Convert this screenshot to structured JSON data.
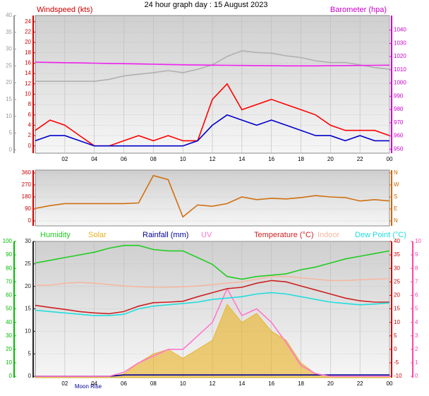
{
  "chart_data": [
    {
      "type": "line",
      "title": "24 hour graph day : 15 August 2023",
      "x": [
        0,
        1,
        2,
        3,
        4,
        5,
        6,
        7,
        8,
        9,
        10,
        11,
        12,
        13,
        14,
        15,
        16,
        17,
        18,
        19,
        20,
        21,
        22,
        23,
        24
      ],
      "xlim": [
        0,
        24
      ],
      "xticks": [
        {
          "value": 2,
          "label": "02"
        },
        {
          "value": 4,
          "label": "04"
        },
        {
          "value": 6,
          "label": "06"
        },
        {
          "value": 8,
          "label": "08"
        },
        10,
        12,
        14,
        16,
        18,
        20,
        22,
        {
          "value": 24,
          "label": "00"
        }
      ],
      "grid": true,
      "axes": [
        {
          "side": "left",
          "label": "Windspeed (kts)",
          "color": "#cc0000",
          "lim": [
            -1.4,
            25.2
          ],
          "ticks": [
            0,
            2,
            4,
            6,
            8,
            10,
            12,
            14,
            16,
            18,
            20,
            22,
            24
          ],
          "grid": true
        },
        {
          "side": "left",
          "color": "#999999",
          "lim": [
            -1,
            40
          ],
          "ticks": [
            0,
            5,
            10,
            15,
            20,
            25,
            30,
            35,
            40
          ]
        },
        {
          "side": "right",
          "label": "Barometer (hpa)",
          "color": "#cc00cc",
          "lim": [
            947,
            1051
          ],
          "ticks": [
            950,
            960,
            970,
            980,
            990,
            1000,
            1010,
            1020,
            1030,
            1040
          ]
        }
      ],
      "series": [
        {
          "axis": 1,
          "color": "#b0b0b0",
          "style": "line",
          "values": [
            20.4,
            20.4,
            20.4,
            20.4,
            20.4,
            21,
            22,
            22.5,
            23,
            23.6,
            23,
            24,
            25.3,
            27.8,
            29.5,
            29,
            28.8,
            28,
            27.5,
            26.5,
            26,
            26,
            25.3,
            24.5,
            24
          ]
        },
        {
          "axis": 2,
          "color": "#ee22ee",
          "style": "line",
          "values": [
            1015.8,
            1015.6,
            1015.4,
            1015.2,
            1015,
            1014.8,
            1014.6,
            1014.4,
            1014.2,
            1014,
            1013.8,
            1013.6,
            1013.5,
            1013.4,
            1013.3,
            1013.2,
            1013.1,
            1013,
            1013,
            1013,
            1013.1,
            1013.2,
            1013.3,
            1013.4,
            1013.5
          ]
        },
        {
          "axis": 0,
          "color": "#ff0000",
          "style": "line",
          "values": [
            3,
            5,
            4,
            2,
            0,
            0,
            1,
            2,
            1,
            2,
            1,
            1,
            9,
            12,
            7,
            8,
            9,
            8,
            7,
            6,
            4,
            3,
            3,
            3,
            2
          ]
        },
        {
          "axis": 0,
          "color": "#0000cc",
          "style": "line",
          "values": [
            1,
            2,
            2,
            1,
            0,
            0,
            0,
            0,
            0,
            0,
            0,
            1,
            4,
            6,
            5,
            4,
            5,
            4,
            3,
            2,
            2,
            1,
            2,
            1,
            1
          ]
        }
      ]
    },
    {
      "type": "line",
      "x": [
        0,
        1,
        2,
        3,
        4,
        5,
        6,
        7,
        8,
        9,
        10,
        11,
        12,
        13,
        14,
        15,
        16,
        17,
        18,
        19,
        20,
        21,
        22,
        23,
        24
      ],
      "xlim": [
        0,
        24
      ],
      "annotation": "Moon Rise",
      "axes": [
        {
          "side": "left",
          "color": "#cc0000",
          "lim": [
            -37,
            381
          ],
          "ticks": [
            0,
            90,
            180,
            270,
            360
          ],
          "grid": true
        },
        {
          "side": "right",
          "color": "#cc6600",
          "lim": [
            -37,
            381
          ],
          "ticks": [
            {
              "value": 0,
              "label": "N"
            },
            {
              "value": 90,
              "label": "E"
            },
            {
              "value": 180,
              "label": "S"
            },
            {
              "value": 270,
              "label": "W"
            },
            {
              "value": 360,
              "label": "N"
            }
          ]
        }
      ],
      "series": [
        {
          "axis": 0,
          "color": "#d07010",
          "style": "line",
          "values": [
            94,
            115,
            130,
            130,
            130,
            130,
            130,
            135,
            340,
            310,
            30,
            120,
            110,
            130,
            180,
            160,
            170,
            165,
            175,
            190,
            180,
            175,
            150,
            160,
            150
          ]
        }
      ]
    },
    {
      "type": "line",
      "x": [
        0,
        1,
        2,
        3,
        4,
        5,
        6,
        7,
        8,
        9,
        10,
        11,
        12,
        13,
        14,
        15,
        16,
        17,
        18,
        19,
        20,
        21,
        22,
        23,
        24
      ],
      "xlim": [
        0,
        24
      ],
      "xticks": [
        {
          "value": 2,
          "label": "02"
        },
        {
          "value": 4,
          "label": "04"
        },
        {
          "value": 6,
          "label": "06"
        },
        {
          "value": 8,
          "label": "08"
        },
        10,
        12,
        14,
        16,
        18,
        20,
        22,
        {
          "value": 24,
          "label": "00"
        }
      ],
      "grid": true,
      "axes": [
        {
          "side": "left",
          "color": "#222222",
          "lim": [
            -0.3,
            30
          ],
          "ticks": [
            0,
            5,
            10,
            15,
            20,
            25,
            30
          ],
          "grid": true
        },
        {
          "side": "left",
          "color": "#00bb00",
          "lim": [
            -1,
            100
          ],
          "ticks": [
            0,
            10,
            20,
            30,
            40,
            50,
            60,
            70,
            80,
            90,
            100
          ]
        },
        {
          "side": "right",
          "color": "#cc0000",
          "lim": [
            -10.5,
            40
          ],
          "ticks": [
            -10,
            -5,
            0,
            5,
            10,
            15,
            20,
            25,
            30,
            35,
            40
          ]
        },
        {
          "side": "right",
          "color": "#ff44aa",
          "lim": [
            -0.1,
            10
          ],
          "ticks": [
            0,
            1,
            2,
            3,
            4,
            5,
            6,
            7,
            8,
            9,
            10
          ]
        }
      ],
      "series": [
        {
          "name": "Humidity",
          "axis": 1,
          "color": "#22cc22",
          "style": "line",
          "values": [
            84,
            86,
            88,
            90,
            92,
            95,
            97,
            97,
            94,
            93,
            93,
            88,
            83,
            74,
            72,
            74,
            75,
            76,
            79,
            81,
            84,
            87,
            89,
            91,
            93
          ]
        },
        {
          "name": "Solar",
          "axis": 0,
          "color": "#e8b020",
          "style": "area",
          "values": [
            0,
            0,
            0,
            0,
            0,
            0,
            0.5,
            3,
            5,
            6,
            4,
            6,
            8,
            16,
            12,
            14,
            10,
            8,
            3,
            0.5,
            0,
            0,
            0,
            0,
            0
          ]
        },
        {
          "name": "Rainfall (mm)",
          "axis": 0,
          "color": "#000099",
          "style": "line",
          "values": [
            0,
            0,
            0,
            0,
            0,
            0,
            0.3,
            0.3,
            0.3,
            0.3,
            0.3,
            0.3,
            0.3,
            0.3,
            0.3,
            0.3,
            0.3,
            0.3,
            0.3,
            0.3,
            0.3,
            0.3,
            0.3,
            0.3,
            0.3
          ]
        },
        {
          "name": "UV",
          "axis": 3,
          "color": "#ff77cc",
          "style": "line",
          "values": [
            0,
            0,
            0,
            0,
            0,
            0,
            0.3,
            1,
            1.5,
            2,
            2,
            3,
            4,
            6.5,
            4.5,
            5,
            4,
            2.5,
            0.8,
            0.2,
            0,
            0,
            0,
            0,
            0
          ]
        },
        {
          "name": "Temperature (°C)",
          "axis": 2,
          "color": "#cc2222",
          "style": "line",
          "values": [
            16.3,
            15.5,
            14.8,
            14,
            13.5,
            13.2,
            14,
            16,
            17.3,
            17.5,
            17.8,
            19.5,
            21,
            22.5,
            23,
            24.5,
            25.5,
            25,
            23.5,
            22,
            20.5,
            19,
            18,
            17.5,
            17.5
          ]
        },
        {
          "name": "Indoor",
          "axis": 2,
          "color": "#f5b8a0",
          "style": "line",
          "values": [
            23.8,
            23.8,
            24.5,
            24.8,
            24.5,
            24,
            23.5,
            23.2,
            23,
            23,
            23.2,
            23.5,
            24,
            24.5,
            25,
            26,
            27,
            27,
            26.5,
            26,
            25.5,
            25.5,
            25.8,
            26,
            26.2
          ]
        },
        {
          "name": "Dew Point (°C)",
          "axis": 2,
          "color": "#22dddd",
          "style": "line",
          "values": [
            14.5,
            14,
            13.5,
            13,
            12.5,
            12.5,
            13,
            15,
            16,
            16.5,
            17,
            17.5,
            18.5,
            19,
            19.5,
            20.5,
            21,
            20.5,
            19.5,
            18.5,
            17.5,
            17,
            16.5,
            16.8,
            17.2
          ]
        }
      ]
    }
  ]
}
